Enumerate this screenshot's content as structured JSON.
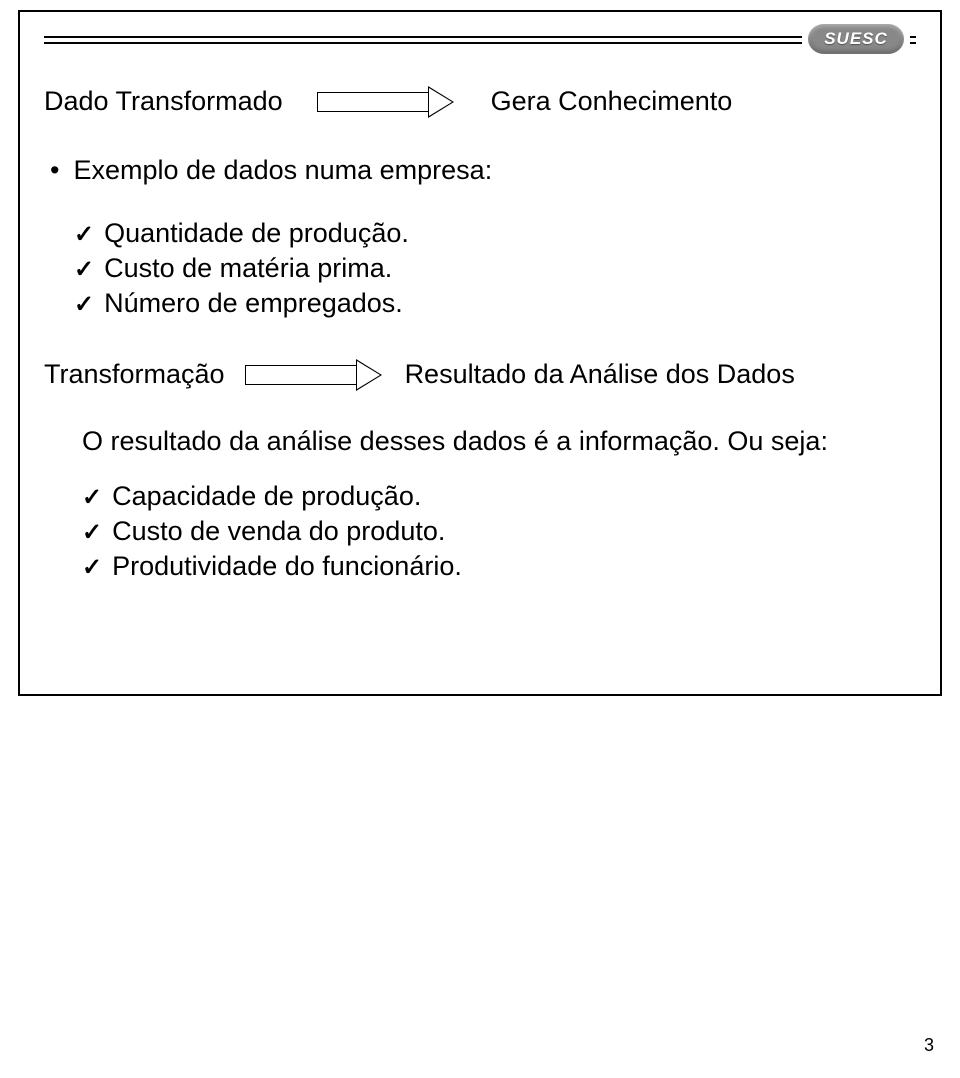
{
  "logo": {
    "text": "SUESC"
  },
  "row1": {
    "left": "Dado Transformado",
    "right": "Gera Conhecimento"
  },
  "example_intro": "Exemplo de dados numa empresa:",
  "checks1": [
    "Quantidade de produção.",
    "Custo de matéria prima.",
    "Número de empregados."
  ],
  "row2": {
    "left": "Transformação",
    "right": "Resultado da Análise dos Dados"
  },
  "result_intro": "O resultado da análise desses dados é a informação. Ou seja:",
  "checks2": [
    "Capacidade de produção.",
    "Custo de venda do produto.",
    "Produtividade do funcionário."
  ],
  "page_number": "3",
  "checkmark": "✓"
}
